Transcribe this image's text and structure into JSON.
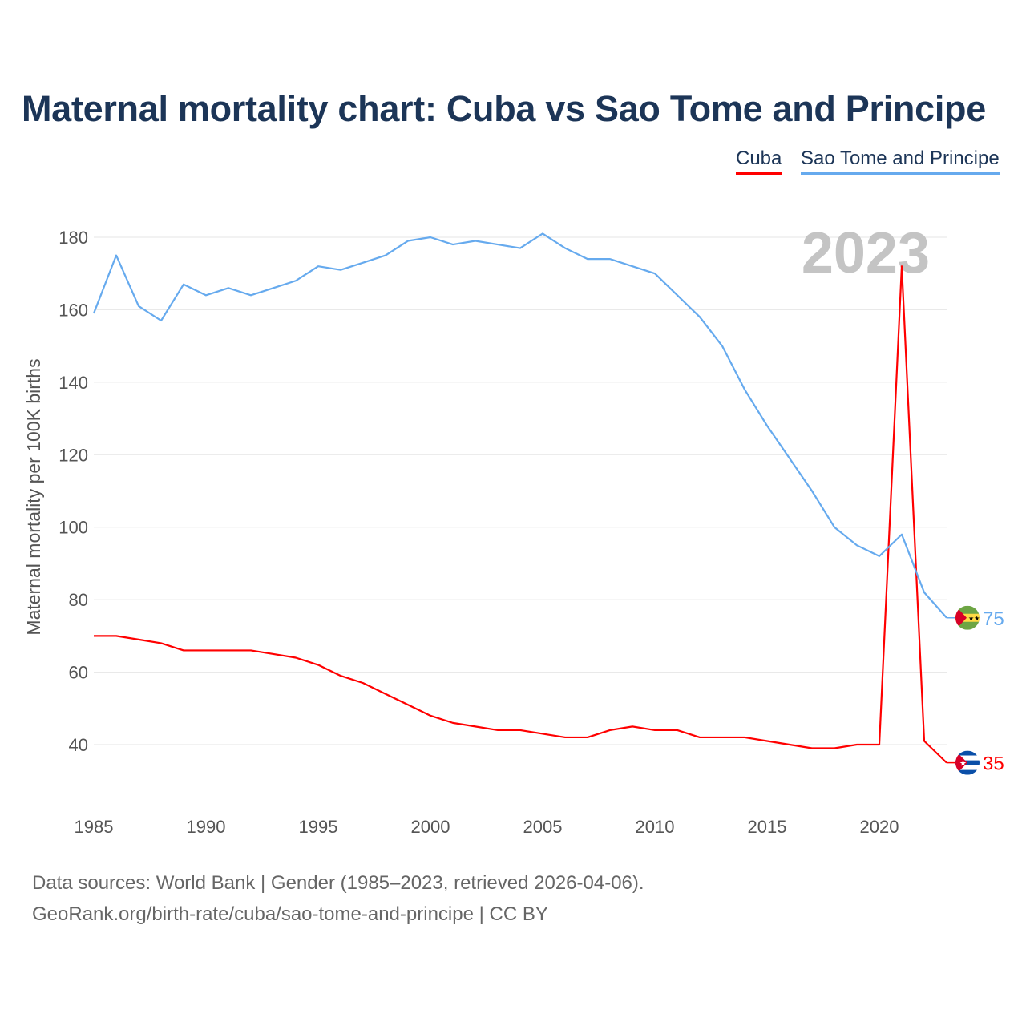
{
  "chart_data": {
    "type": "line",
    "title": "Maternal mortality chart: Cuba vs Sao Tome and Principe",
    "xlabel": "",
    "ylabel": "Maternal mortality per 100K births",
    "xlim": [
      1985,
      2023
    ],
    "ylim": [
      40,
      180
    ],
    "x_ticks": [
      "1985",
      "1990",
      "1995",
      "2000",
      "2005",
      "2010",
      "2015",
      "2020"
    ],
    "y_ticks": [
      "40",
      "60",
      "80",
      "100",
      "120",
      "140",
      "160",
      "180"
    ],
    "year_label": "2023",
    "legend_position": "top-right",
    "x": [
      1985,
      1986,
      1987,
      1988,
      1989,
      1990,
      1991,
      1992,
      1993,
      1994,
      1995,
      1996,
      1997,
      1998,
      1999,
      2000,
      2001,
      2002,
      2003,
      2004,
      2005,
      2006,
      2007,
      2008,
      2009,
      2010,
      2011,
      2012,
      2013,
      2014,
      2015,
      2016,
      2017,
      2018,
      2019,
      2020,
      2021,
      2022,
      2023
    ],
    "series": [
      {
        "name": "Cuba",
        "color": "#ff0000",
        "end_label": "35",
        "values": [
          70,
          70,
          69,
          68,
          66,
          66,
          66,
          66,
          65,
          64,
          62,
          59,
          57,
          54,
          51,
          48,
          46,
          45,
          44,
          44,
          43,
          42,
          42,
          44,
          45,
          44,
          44,
          42,
          42,
          42,
          41,
          40,
          39,
          39,
          40,
          40,
          172,
          41,
          35
        ]
      },
      {
        "name": "Sao Tome and Principe",
        "color": "#66aaee",
        "end_label": "75",
        "values": [
          159,
          175,
          161,
          157,
          167,
          164,
          166,
          164,
          166,
          168,
          172,
          171,
          173,
          175,
          179,
          180,
          178,
          179,
          178,
          177,
          181,
          177,
          174,
          174,
          172,
          170,
          164,
          158,
          150,
          138,
          128,
          119,
          110,
          100,
          95,
          92,
          98,
          82,
          75
        ]
      }
    ]
  },
  "footer": {
    "source": "Data sources: World Bank | Gender (1985–2023, retrieved 2026-04-06).",
    "credit": "GeoRank.org/birth-rate/cuba/sao-tome-and-principe | CC BY"
  }
}
